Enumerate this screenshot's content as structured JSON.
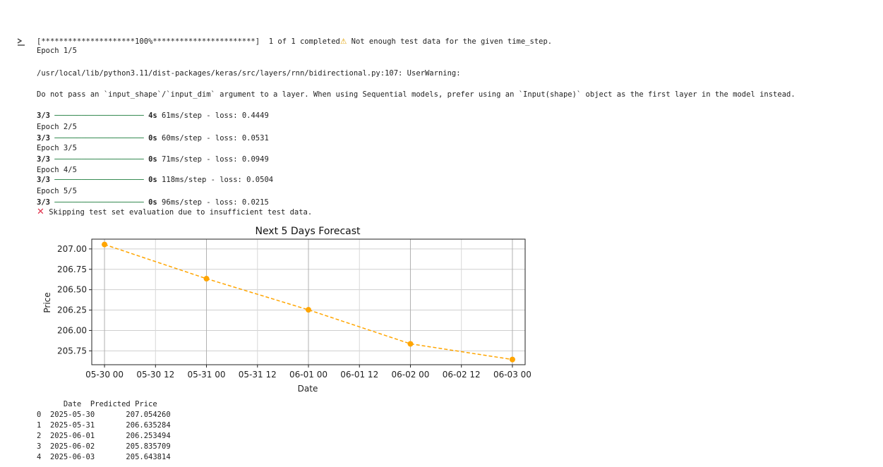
{
  "cell_output": {
    "download_line": {
      "progress": "[*********************100%***********************]",
      "completed": "1 of 1 completed",
      "warning_icon": "warning-icon",
      "warning_text": "Not enough test data for the given time_step."
    },
    "epoch_1_header": "Epoch 1/5",
    "warning_path": "/usr/local/lib/python3.11/dist-packages/keras/src/layers/rnn/bidirectional.py:107: UserWarning:",
    "warning_message": "Do not pass an `input_shape`/`input_dim` argument to a layer. When using Sequential models, prefer using an `Input(shape)` object as the first layer in the model instead.",
    "epochs": [
      {
        "header": "Epoch 1/5",
        "step": "3/3",
        "time": "4s",
        "detail": "61ms/step - loss: 0.4449"
      },
      {
        "header": "Epoch 2/5",
        "step": "3/3",
        "time": "0s",
        "detail": "60ms/step - loss: 0.0531"
      },
      {
        "header": "Epoch 3/5",
        "step": "3/3",
        "time": "0s",
        "detail": "71ms/step - loss: 0.0949"
      },
      {
        "header": "Epoch 4/5",
        "step": "3/3",
        "time": "0s",
        "detail": "118ms/step - loss: 0.0504"
      },
      {
        "header": "Epoch 5/5",
        "step": "3/3",
        "time": "0s",
        "detail": "96ms/step - loss: 0.0215"
      }
    ],
    "progress_bar": "────────────────────",
    "skip_icon": "cross-icon",
    "skip_text": "Skipping test set evaluation due to insufficient test data.",
    "table": {
      "header": "      Date  Predicted Price",
      "rows": [
        "0  2025-05-30       207.054260",
        "1  2025-05-31       206.635284",
        "2  2025-06-01       206.253494",
        "3  2025-06-02       205.835709",
        "4  2025-06-03       205.643814"
      ]
    }
  },
  "chart_data": {
    "type": "line",
    "title": "Next 5 Days Forecast",
    "xlabel": "Date",
    "ylabel": "Price",
    "x": [
      "2025-05-30",
      "2025-05-31",
      "2025-06-01",
      "2025-06-02",
      "2025-06-03"
    ],
    "y": [
      207.05426,
      206.635284,
      206.253494,
      205.835709,
      205.643814
    ],
    "x_tick_labels": [
      "05-30 00",
      "05-30 12",
      "05-31 00",
      "05-31 12",
      "06-01 00",
      "06-01 12",
      "06-02 00",
      "06-02 12",
      "06-03 00"
    ],
    "y_ticks": [
      205.75,
      206.0,
      206.25,
      206.5,
      206.75,
      207.0
    ],
    "y_tick_labels": [
      "205.75",
      "206.00",
      "206.25",
      "206.50",
      "206.75",
      "207.00"
    ],
    "ylim": [
      205.58,
      207.12
    ],
    "xlim": [
      "2025-05-29 21:00",
      "2025-06-03 03:00"
    ],
    "grid": true,
    "line_color": "#ffa500",
    "line_style": "dashed",
    "marker": "circle"
  }
}
